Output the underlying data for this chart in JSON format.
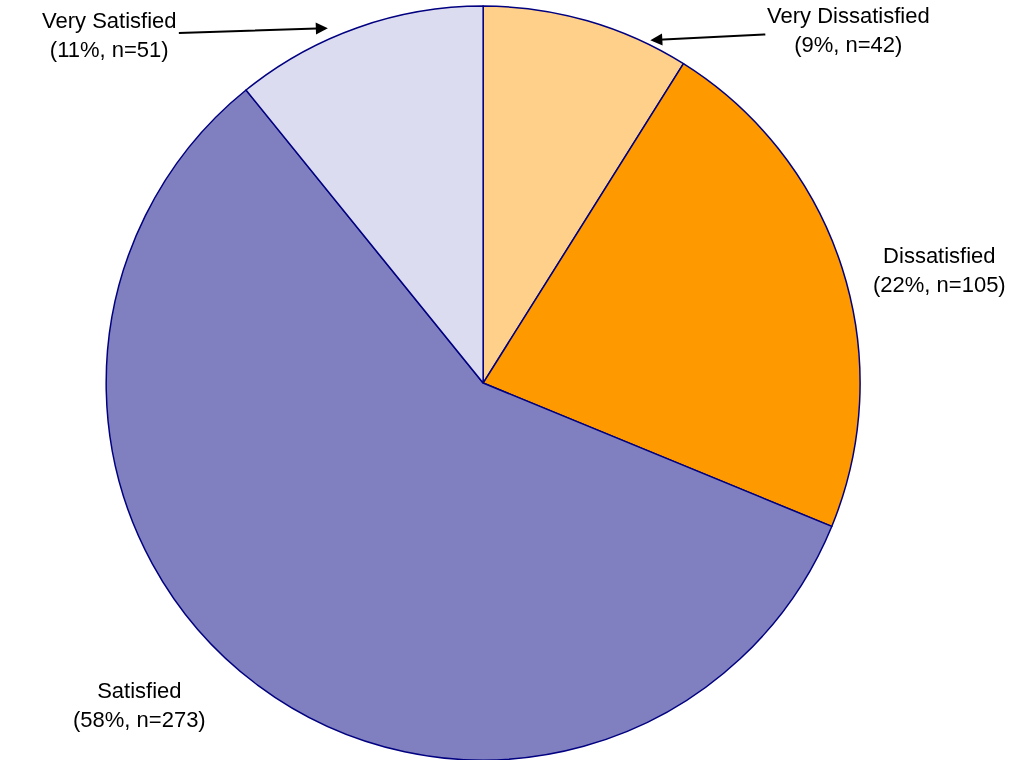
{
  "chart_data": {
    "type": "pie",
    "categories": [
      "Very Dissatisfied",
      "Dissatisfied",
      "Satisfied",
      "Very Satisfied"
    ],
    "values": [
      42,
      105,
      273,
      51
    ],
    "value_labels": [
      "(9%, n=42)",
      "(22%, n=105)",
      "(58%, n=273)",
      "(11%, n=51)"
    ],
    "colors": [
      "#ffd08a",
      "#ff9900",
      "#8080c0",
      "#dcdcf0"
    ],
    "legend": false
  }
}
